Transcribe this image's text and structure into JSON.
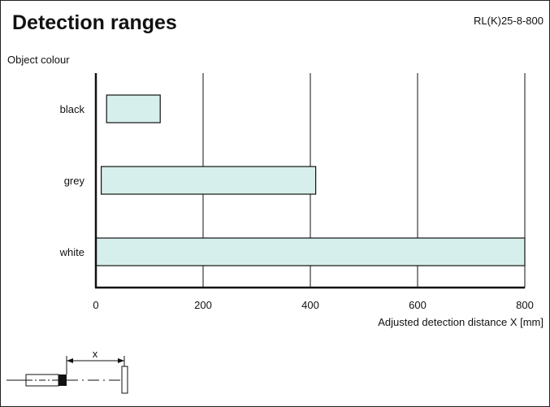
{
  "header": {
    "title": "Detection ranges",
    "model": "RL(K)25-8-800"
  },
  "chart_data": {
    "type": "bar",
    "orientation": "horizontal",
    "title": "Detection ranges",
    "xlabel": "Adjusted detection distance X [mm]",
    "ylabel": "Object colour",
    "xlim": [
      0,
      800
    ],
    "xticks": [
      "0",
      "200",
      "400",
      "600",
      "800"
    ],
    "grid": true,
    "categories": [
      "black",
      "grey",
      "white"
    ],
    "ranges": [
      [
        20,
        120
      ],
      [
        10,
        410
      ],
      [
        0,
        800
      ]
    ],
    "colors": {
      "bar_fill": "#d7efec",
      "bar_stroke": "#111111",
      "grid": "#111111"
    }
  },
  "diagram": {
    "distance_label": "x"
  }
}
